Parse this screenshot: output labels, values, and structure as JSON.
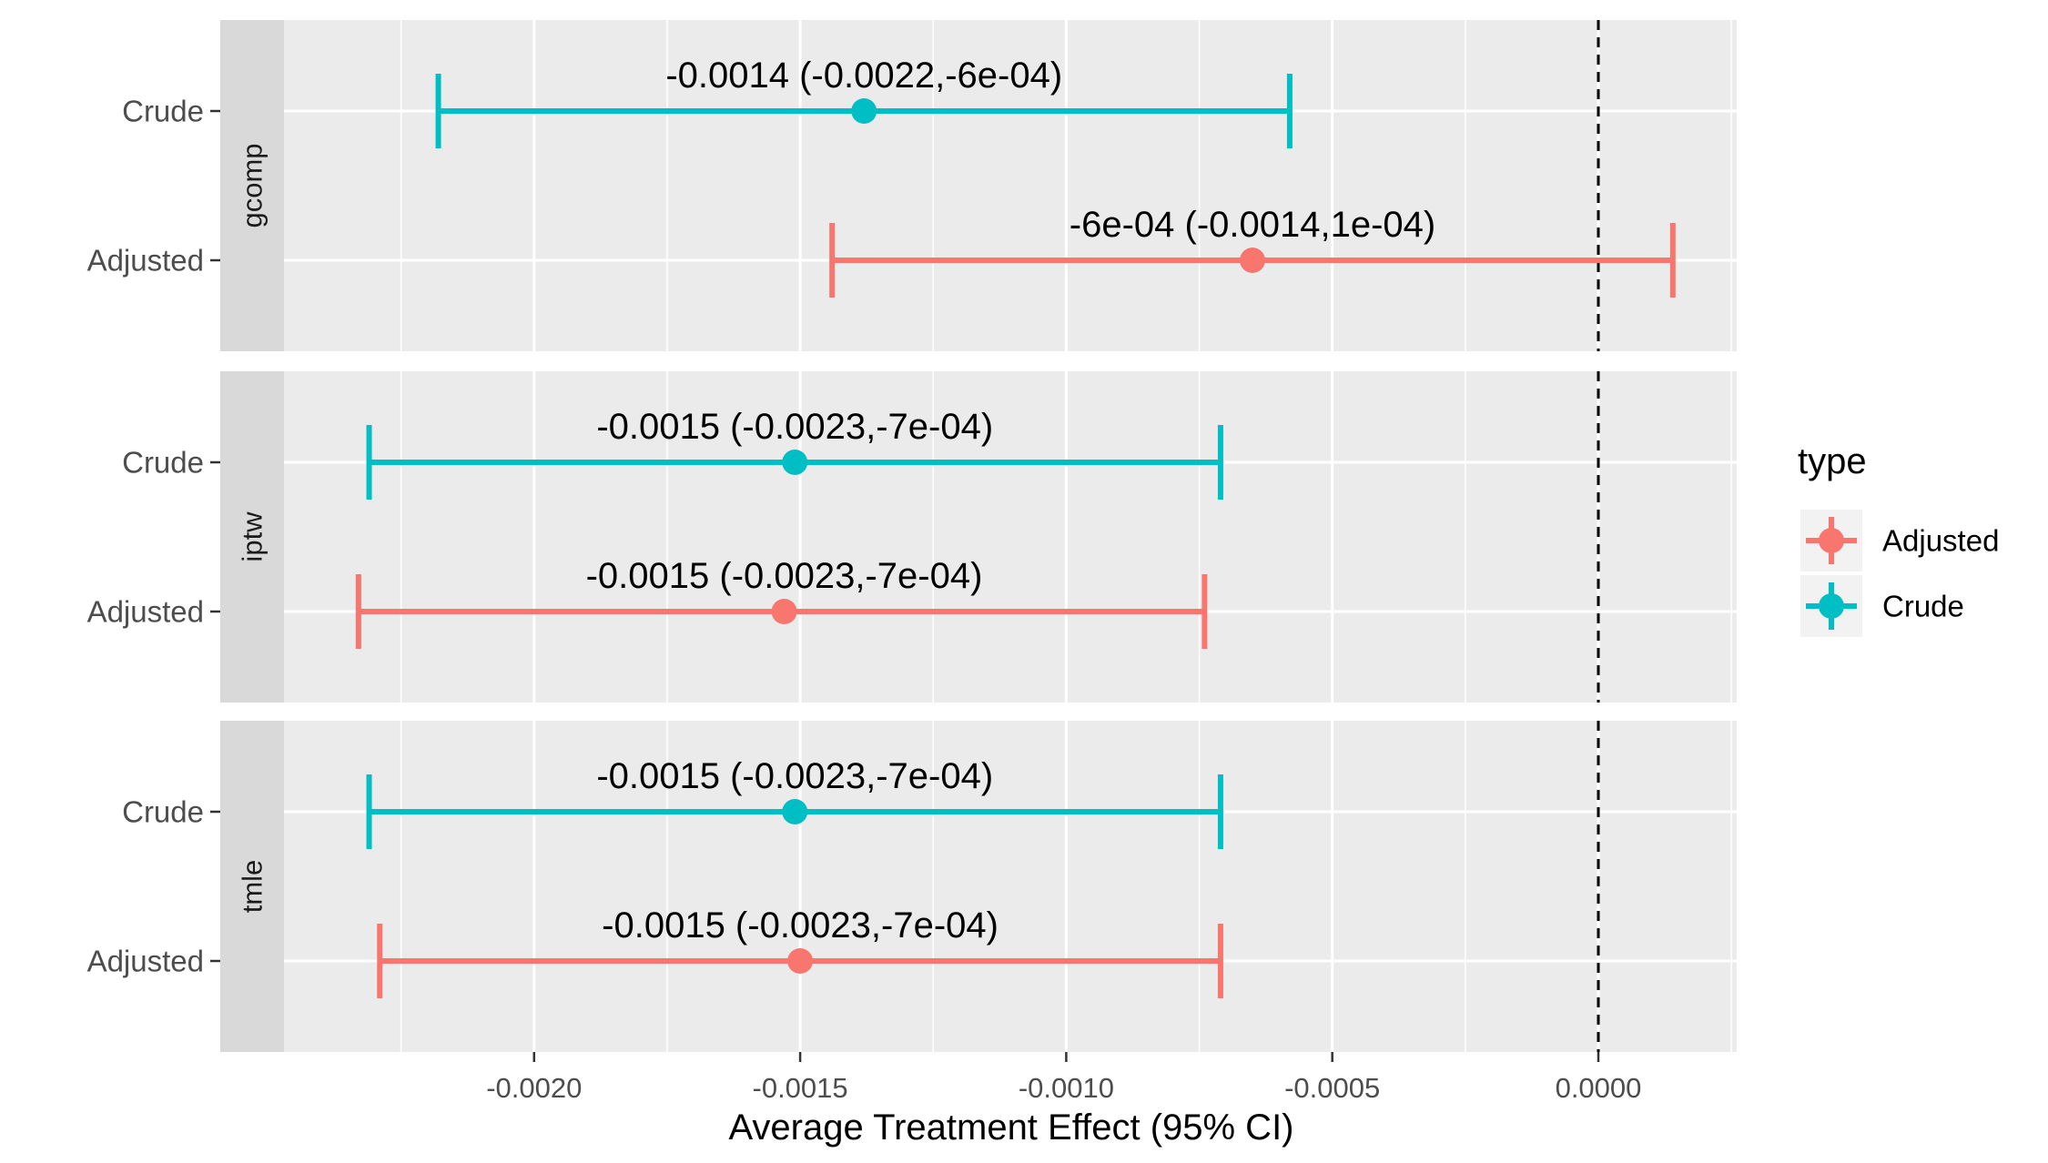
{
  "chart_data": {
    "type": "scatter",
    "subtype": "forest-plot-with-error-bars",
    "xlabel": "Average Treatment Effect (95% CI)",
    "xlim": [
      -0.00247,
      0.00026
    ],
    "x_ticks": [
      -0.002,
      -0.0015,
      -0.001,
      -0.0005,
      0.0
    ],
    "x_tick_labels": [
      "-0.0020",
      "-0.0015",
      "-0.0010",
      "-0.0005",
      "0.0000"
    ],
    "reference_line": {
      "x": 0.0,
      "style": "dashed",
      "color": "#000000"
    },
    "grid": true,
    "facet_strip_position": "left",
    "categories": [
      "Crude",
      "Adjusted"
    ],
    "panels": [
      {
        "facet": "gcomp",
        "points": [
          {
            "category": "Crude",
            "type": "Crude",
            "estimate": -0.00138,
            "lower": -0.00218,
            "upper": -0.00058,
            "label": "-0.0014 (-0.0022,-6e-04)"
          },
          {
            "category": "Adjusted",
            "type": "Adjusted",
            "estimate": -0.00065,
            "lower": -0.00144,
            "upper": 0.00014,
            "label": "-6e-04 (-0.0014,1e-04)"
          }
        ]
      },
      {
        "facet": "iptw",
        "points": [
          {
            "category": "Crude",
            "type": "Crude",
            "estimate": -0.00151,
            "lower": -0.00231,
            "upper": -0.00071,
            "label": "-0.0015 (-0.0023,-7e-04)"
          },
          {
            "category": "Adjusted",
            "type": "Adjusted",
            "estimate": -0.00153,
            "lower": -0.00233,
            "upper": -0.00074,
            "label": "-0.0015 (-0.0023,-7e-04)"
          }
        ]
      },
      {
        "facet": "tmle",
        "points": [
          {
            "category": "Crude",
            "type": "Crude",
            "estimate": -0.00151,
            "lower": -0.00231,
            "upper": -0.00071,
            "label": "-0.0015 (-0.0023,-7e-04)"
          },
          {
            "category": "Adjusted",
            "type": "Adjusted",
            "estimate": -0.0015,
            "lower": -0.00229,
            "upper": -0.00071,
            "label": "-0.0015 (-0.0023,-7e-04)"
          }
        ]
      }
    ],
    "legend": {
      "title": "type",
      "position": "right",
      "entries": [
        {
          "name": "Adjusted",
          "color": "#F8766D"
        },
        {
          "name": "Crude",
          "color": "#00BFC4"
        }
      ]
    }
  }
}
